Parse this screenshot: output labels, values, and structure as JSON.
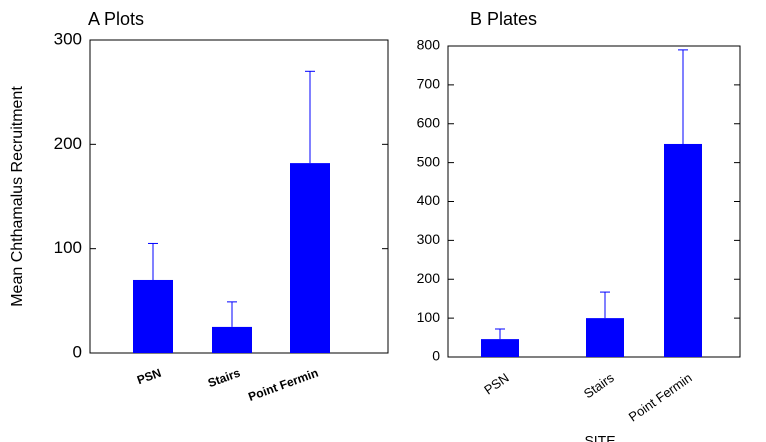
{
  "chart_data": [
    {
      "type": "bar",
      "title": "A Plots",
      "y_label": "Mean Chthamalus Recruitment",
      "categories": [
        "PSN",
        "Stairs",
        "Point Fermin"
      ],
      "values": [
        70,
        25,
        182
      ],
      "errors": [
        35,
        24,
        88
      ],
      "color": "#0000ff",
      "ylim": [
        0,
        300
      ],
      "yticks": [
        0,
        100,
        200,
        300
      ]
    },
    {
      "type": "bar",
      "title": "B Plates",
      "x_label": "SITE",
      "categories": [
        "PSN",
        "Stairs",
        "Point Fermin"
      ],
      "values": [
        46,
        100,
        548
      ],
      "errors": [
        26,
        67,
        242
      ],
      "color": "#0000ff",
      "ylim": [
        0,
        800
      ],
      "yticks": [
        0,
        100,
        200,
        300,
        400,
        500,
        600,
        700,
        800
      ]
    }
  ]
}
